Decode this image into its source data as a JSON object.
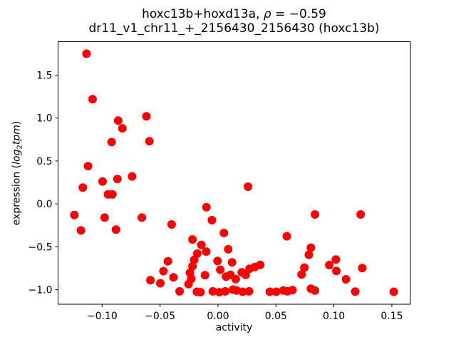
{
  "figure": {
    "title_line1": {
      "prefix": "hoxc13b+hoxd13a, ",
      "rho": "ρ",
      "suffix": " = −0.59"
    },
    "title_line2": "dr11_v1_chr11_+_2156430_2156430 (hoxc13b)",
    "xlabel": "activity",
    "ylabel": {
      "prefix": "expression (",
      "log": "log",
      "sub": "2",
      "tpm": "tpm",
      "suffix": ")"
    }
  },
  "chart_data": {
    "type": "scatter",
    "title": "hoxc13b+hoxd13a, ρ = −0.59",
    "subtitle": "dr11_v1_chr11_+_2156430_2156430 (hoxc13b)",
    "xlabel": "activity",
    "ylabel": "expression (log2tpm)",
    "correlation_rho": -0.59,
    "legend": "none",
    "grid": false,
    "xlim": [
      -0.138,
      0.166
    ],
    "ylim": [
      -1.17,
      1.89
    ],
    "xticks": [
      -0.1,
      -0.05,
      0.0,
      0.05,
      0.1,
      0.15
    ],
    "xtick_labels": [
      "−0.10",
      "−0.05",
      "0.00",
      "0.05",
      "0.10",
      "0.15"
    ],
    "yticks": [
      -1.0,
      -0.5,
      0.0,
      0.5,
      1.0,
      1.5
    ],
    "ytick_labels": [
      "−1.0",
      "−0.5",
      "0.0",
      "0.5",
      "1.0",
      "1.5"
    ],
    "style": {
      "marker_color": "#ff0000",
      "marker_radius": 6,
      "axis_color": "#000000",
      "background": "#ffffff",
      "text_color": "#000000"
    },
    "points": [
      [
        -0.1135,
        1.75
      ],
      [
        -0.1082,
        1.22
      ],
      [
        -0.0861,
        0.97
      ],
      [
        -0.0825,
        0.88
      ],
      [
        -0.0918,
        0.72
      ],
      [
        -0.0618,
        1.02
      ],
      [
        -0.0592,
        0.73
      ],
      [
        -0.1121,
        0.44
      ],
      [
        -0.1166,
        0.19
      ],
      [
        -0.0996,
        0.26
      ],
      [
        -0.0868,
        0.29
      ],
      [
        -0.0741,
        0.32
      ],
      [
        -0.0949,
        0.11
      ],
      [
        -0.0911,
        0.11
      ],
      [
        -0.1239,
        -0.13
      ],
      [
        -0.0978,
        -0.16
      ],
      [
        -0.1182,
        -0.31
      ],
      [
        -0.088,
        -0.3
      ],
      [
        -0.0657,
        -0.16
      ],
      [
        -0.04,
        -0.24
      ],
      [
        -0.0432,
        -0.67
      ],
      [
        -0.0471,
        -0.785
      ],
      [
        -0.0583,
        -0.89
      ],
      [
        -0.0498,
        -0.925
      ],
      [
        -0.0384,
        -0.857
      ],
      [
        -0.0331,
        -1.02
      ],
      [
        -0.01,
        -0.04
      ],
      [
        -0.0053,
        -0.19
      ],
      [
        0.0051,
        -0.34
      ],
      [
        -0.022,
        -0.415
      ],
      [
        -0.0143,
        -0.478
      ],
      [
        -0.0102,
        -0.556
      ],
      [
        -0.0178,
        -0.58
      ],
      [
        0.0088,
        -0.53
      ],
      [
        -0.0004,
        -0.666
      ],
      [
        0.0121,
        -0.682
      ],
      [
        0.002,
        -0.768
      ],
      [
        -0.0205,
        -0.653
      ],
      [
        -0.022,
        -0.728
      ],
      [
        -0.0242,
        -0.803
      ],
      [
        -0.023,
        -0.873
      ],
      [
        -0.0112,
        -0.832
      ],
      [
        -0.0254,
        -0.935
      ],
      [
        0.007,
        -0.848
      ],
      [
        0.0107,
        -0.828
      ],
      [
        0.0153,
        -0.877
      ],
      [
        0.0205,
        -0.799
      ],
      [
        0.0239,
        -0.828
      ],
      [
        0.0272,
        -0.757
      ],
      [
        0.0318,
        -0.736
      ],
      [
        0.0364,
        -0.711
      ],
      [
        0.0259,
        0.2
      ],
      [
        -0.0182,
        -1.025
      ],
      [
        -0.0151,
        -1.03
      ],
      [
        -0.0045,
        -1.02
      ],
      [
        0.0012,
        -1.03
      ],
      [
        0.0063,
        -1.02
      ],
      [
        0.0129,
        -1.0
      ],
      [
        0.0161,
        -1.01
      ],
      [
        0.0213,
        -1.025
      ],
      [
        0.0268,
        -1.02
      ],
      [
        0.0447,
        -1.025
      ],
      [
        0.0502,
        -1.025
      ],
      [
        0.0563,
        -1.01
      ],
      [
        0.06,
        -1.02
      ],
      [
        0.0643,
        -1.005
      ],
      [
        0.0802,
        -0.99
      ],
      [
        0.0836,
        -1.01
      ],
      [
        0.0594,
        -0.378
      ],
      [
        0.0837,
        -0.124
      ],
      [
        0.1231,
        -0.124
      ],
      [
        0.0802,
        -0.511
      ],
      [
        0.0784,
        -0.594
      ],
      [
        0.0745,
        -0.743
      ],
      [
        0.0721,
        -0.823
      ],
      [
        0.1017,
        -0.649
      ],
      [
        0.096,
        -0.713
      ],
      [
        0.1021,
        -0.782
      ],
      [
        0.1104,
        -0.879
      ],
      [
        0.1245,
        -0.749
      ],
      [
        0.1184,
        -1.022
      ],
      [
        0.1517,
        -1.025
      ]
    ]
  }
}
